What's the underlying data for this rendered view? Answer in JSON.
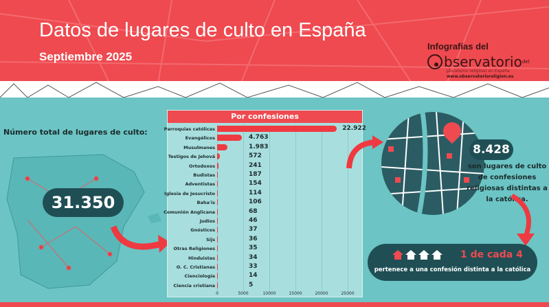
{
  "header": {
    "title": "Datos de lugares de culto en España",
    "subtitle": "Septiembre 2025"
  },
  "logo": {
    "line1": "Infografías del",
    "name": "bservatorio",
    "suffix": "del",
    "tagline": "pluralismo religioso en España",
    "url": "www.observatorioreligion.es"
  },
  "left": {
    "label": "Número total de lugares de culto:",
    "total": "31.350"
  },
  "chart_data": {
    "type": "bar",
    "orientation": "horizontal",
    "title": "Por confesiones",
    "categories": [
      "Parroquias católicas",
      "Evangélicos",
      "Musulmanes",
      "Testigos de Jehová",
      "Ortodoxos",
      "Budistas",
      "Adventistas",
      "Iglesia de Jesucristo",
      "Baha'is",
      "Comunión Anglicana",
      "Judíos",
      "Gnósticos",
      "Sijs",
      "Otras Religiones",
      "Hinduistas",
      "O. C. Cristianas",
      "Cienciología",
      "Ciencia cristiana"
    ],
    "values": [
      22922,
      4763,
      1983,
      572,
      241,
      187,
      154,
      114,
      106,
      68,
      46,
      37,
      36,
      35,
      34,
      33,
      14,
      5
    ],
    "value_labels": [
      "22.922",
      "4.763",
      "1.983",
      "572",
      "241",
      "187",
      "154",
      "114",
      "106",
      "68",
      "46",
      "37",
      "36",
      "35",
      "34",
      "33",
      "14",
      "5"
    ],
    "xlim": [
      0,
      25000
    ],
    "xticks": [
      "0",
      "5000",
      "10000",
      "15000",
      "20000",
      "25000"
    ],
    "grid": true,
    "bar_color": "#ee3a40"
  },
  "right": {
    "count": "8.428",
    "description": "son lugares de culto de confesiones religiosas distintas a la católica.",
    "ratio": "1 de cada 4",
    "ratio_text": "pertenece a una confesión distinta a la católica"
  },
  "colors": {
    "accent": "#ee4a50",
    "teal": "#6cc4c4",
    "dark": "#1f4f55"
  }
}
